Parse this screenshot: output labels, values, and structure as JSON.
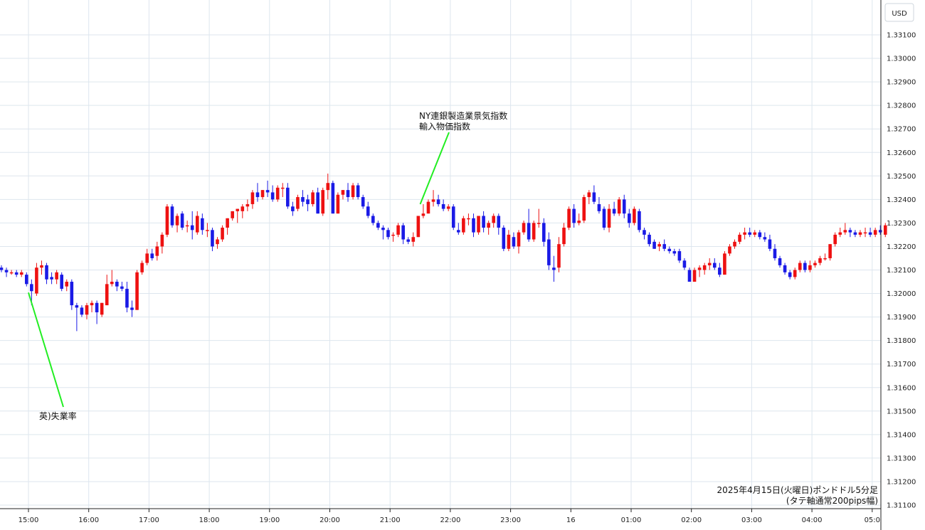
{
  "currency_label": "USD",
  "colors": {
    "up": "#ee1111",
    "down": "#1a1ae6",
    "grid": "#dde6ee",
    "pointer": "#22ee22"
  },
  "note": {
    "line1": "2025年4月15日(火曜日)ポンドドル5分足",
    "line2": "(タテ軸通常200pips幅)"
  },
  "annotations": [
    {
      "lines": [
        "英)失業率"
      ],
      "time": "15:00",
      "price": 1.3201
    },
    {
      "lines": [
        "NY連銀製造業景気指数",
        "輸入物価指数"
      ],
      "time": "21:30",
      "price": 1.3238
    }
  ],
  "chart_data": {
    "type": "candlestick",
    "title": "2025年4月15日(火曜日)ポンドドル5分足",
    "subtitle": "(タテ軸通常200pips幅)",
    "y_axis_label": "USD",
    "ylim": [
      1.3108,
      1.3318
    ],
    "y_ticks": [
      "1.31100",
      "1.31200",
      "1.31300",
      "1.31400",
      "1.31500",
      "1.31600",
      "1.31700",
      "1.31800",
      "1.31900",
      "1.32000",
      "1.32100",
      "1.32200",
      "1.32300",
      "1.32400",
      "1.32500",
      "1.32600",
      "1.32700",
      "1.32800",
      "1.32900",
      "1.33000",
      "1.33100"
    ],
    "x_ticks": [
      "15:00",
      "16:00",
      "17:00",
      "18:00",
      "19:00",
      "20:00",
      "21:00",
      "22:00",
      "23:00",
      "16",
      "01:00",
      "02:00",
      "03:00",
      "04:00",
      "05:0"
    ],
    "candle_interval": "5min",
    "candles": [
      [
        1.3211,
        1.3212,
        1.3209,
        1.321
      ],
      [
        1.321,
        1.3211,
        1.3207,
        1.3209
      ],
      [
        1.3209,
        1.321,
        1.3208,
        1.3209
      ],
      [
        1.3209,
        1.321,
        1.3207,
        1.3208
      ],
      [
        1.3208,
        1.321,
        1.3207,
        1.3209
      ],
      [
        1.3208,
        1.3209,
        1.3203,
        1.3204
      ],
      [
        1.3204,
        1.3206,
        1.3195,
        1.3201
      ],
      [
        1.32,
        1.3213,
        1.3199,
        1.3211
      ],
      [
        1.3211,
        1.3214,
        1.3208,
        1.3212
      ],
      [
        1.3212,
        1.3213,
        1.3204,
        1.3206
      ],
      [
        1.3207,
        1.3209,
        1.3204,
        1.3206
      ],
      [
        1.3206,
        1.321,
        1.3204,
        1.3209
      ],
      [
        1.3208,
        1.3209,
        1.3201,
        1.3202
      ],
      [
        1.3203,
        1.3206,
        1.3201,
        1.3205
      ],
      [
        1.3205,
        1.3206,
        1.3193,
        1.3195
      ],
      [
        1.3195,
        1.3196,
        1.3184,
        1.3194
      ],
      [
        1.3194,
        1.3195,
        1.319,
        1.3191
      ],
      [
        1.3191,
        1.3196,
        1.3189,
        1.3195
      ],
      [
        1.3195,
        1.3197,
        1.3192,
        1.3196
      ],
      [
        1.3196,
        1.3197,
        1.3187,
        1.3192
      ],
      [
        1.3191,
        1.3196,
        1.319,
        1.3196
      ],
      [
        1.3195,
        1.3208,
        1.3195,
        1.3204
      ],
      [
        1.3204,
        1.321,
        1.3203,
        1.3205
      ],
      [
        1.3205,
        1.3206,
        1.3201,
        1.3203
      ],
      [
        1.3203,
        1.3205,
        1.3201,
        1.3202
      ],
      [
        1.3202,
        1.3205,
        1.3192,
        1.3194
      ],
      [
        1.3194,
        1.3197,
        1.319,
        1.3193
      ],
      [
        1.3193,
        1.321,
        1.3193,
        1.3209
      ],
      [
        1.3209,
        1.3214,
        1.3208,
        1.3213
      ],
      [
        1.3213,
        1.3219,
        1.3212,
        1.3217
      ],
      [
        1.3217,
        1.3219,
        1.3214,
        1.3215
      ],
      [
        1.3216,
        1.3222,
        1.3214,
        1.322
      ],
      [
        1.322,
        1.3226,
        1.3217,
        1.3225
      ],
      [
        1.3225,
        1.3238,
        1.3224,
        1.3237
      ],
      [
        1.3237,
        1.3238,
        1.3228,
        1.3229
      ],
      [
        1.3229,
        1.3234,
        1.3226,
        1.3233
      ],
      [
        1.3234,
        1.3235,
        1.3227,
        1.3228
      ],
      [
        1.3229,
        1.3231,
        1.3226,
        1.3229
      ],
      [
        1.3229,
        1.3235,
        1.3223,
        1.3227
      ],
      [
        1.3226,
        1.3235,
        1.3225,
        1.3233
      ],
      [
        1.3232,
        1.3234,
        1.3225,
        1.3227
      ],
      [
        1.3227,
        1.323,
        1.3224,
        1.3227
      ],
      [
        1.3227,
        1.3228,
        1.3218,
        1.322
      ],
      [
        1.3221,
        1.3224,
        1.3219,
        1.3223
      ],
      [
        1.3223,
        1.3229,
        1.3222,
        1.3228
      ],
      [
        1.3228,
        1.3232,
        1.3225,
        1.3232
      ],
      [
        1.3232,
        1.3235,
        1.3231,
        1.3235
      ],
      [
        1.3235,
        1.3236,
        1.323,
        1.3236
      ],
      [
        1.3235,
        1.3238,
        1.3232,
        1.3237
      ],
      [
        1.3237,
        1.324,
        1.3235,
        1.3238
      ],
      [
        1.3238,
        1.3244,
        1.3236,
        1.3243
      ],
      [
        1.3243,
        1.3247,
        1.3239,
        1.3241
      ],
      [
        1.3241,
        1.3244,
        1.324,
        1.3244
      ],
      [
        1.3244,
        1.3248,
        1.3241,
        1.3243
      ],
      [
        1.3243,
        1.3246,
        1.3239,
        1.324
      ],
      [
        1.324,
        1.3246,
        1.3239,
        1.3245
      ],
      [
        1.3245,
        1.3247,
        1.3241,
        1.3245
      ],
      [
        1.3245,
        1.3247,
        1.3236,
        1.3237
      ],
      [
        1.3237,
        1.3239,
        1.3233,
        1.3235
      ],
      [
        1.3236,
        1.3242,
        1.3235,
        1.3241
      ],
      [
        1.3241,
        1.3244,
        1.3237,
        1.3239
      ],
      [
        1.324,
        1.3242,
        1.3235,
        1.3238
      ],
      [
        1.3238,
        1.3244,
        1.3237,
        1.3243
      ],
      [
        1.3243,
        1.3245,
        1.3234,
        1.3234
      ],
      [
        1.3234,
        1.3245,
        1.3233,
        1.3244
      ],
      [
        1.3244,
        1.3251,
        1.324,
        1.3247
      ],
      [
        1.3247,
        1.3248,
        1.3234,
        1.3234
      ],
      [
        1.3234,
        1.3243,
        1.3234,
        1.3242
      ],
      [
        1.3242,
        1.3244,
        1.324,
        1.3244
      ],
      [
        1.3244,
        1.3247,
        1.3239,
        1.3241
      ],
      [
        1.3241,
        1.3247,
        1.324,
        1.3246
      ],
      [
        1.3246,
        1.3247,
        1.324,
        1.3241
      ],
      [
        1.3241,
        1.3242,
        1.3236,
        1.3237
      ],
      [
        1.3237,
        1.3239,
        1.3232,
        1.3233
      ],
      [
        1.3233,
        1.3234,
        1.3229,
        1.323
      ],
      [
        1.323,
        1.3231,
        1.3227,
        1.3228
      ],
      [
        1.3228,
        1.3229,
        1.3223,
        1.3227
      ],
      [
        1.3227,
        1.3228,
        1.3223,
        1.3224
      ],
      [
        1.3225,
        1.3226,
        1.3222,
        1.3225
      ],
      [
        1.3225,
        1.323,
        1.3224,
        1.3229
      ],
      [
        1.3229,
        1.323,
        1.3221,
        1.3223
      ],
      [
        1.3223,
        1.3224,
        1.3221,
        1.3222
      ],
      [
        1.3222,
        1.3226,
        1.322,
        1.3224
      ],
      [
        1.3224,
        1.3233,
        1.3224,
        1.3233
      ],
      [
        1.3233,
        1.3238,
        1.3232,
        1.3234
      ],
      [
        1.3234,
        1.324,
        1.3234,
        1.3239
      ],
      [
        1.3239,
        1.3244,
        1.3237,
        1.324
      ],
      [
        1.324,
        1.3242,
        1.3237,
        1.3238
      ],
      [
        1.3238,
        1.324,
        1.3235,
        1.3236
      ],
      [
        1.3236,
        1.3238,
        1.3235,
        1.3237
      ],
      [
        1.3237,
        1.3238,
        1.3227,
        1.3228
      ],
      [
        1.3227,
        1.323,
        1.3225,
        1.3226
      ],
      [
        1.3226,
        1.3233,
        1.3225,
        1.3232
      ],
      [
        1.3232,
        1.3234,
        1.3229,
        1.3232
      ],
      [
        1.3232,
        1.3234,
        1.3224,
        1.3226
      ],
      [
        1.3226,
        1.3233,
        1.3225,
        1.3233
      ],
      [
        1.3233,
        1.3235,
        1.3226,
        1.3228
      ],
      [
        1.3228,
        1.3231,
        1.3225,
        1.323
      ],
      [
        1.323,
        1.3234,
        1.3228,
        1.3233
      ],
      [
        1.3233,
        1.3234,
        1.3225,
        1.3228
      ],
      [
        1.3228,
        1.3229,
        1.3218,
        1.3219
      ],
      [
        1.3219,
        1.3227,
        1.3218,
        1.3225
      ],
      [
        1.3224,
        1.3226,
        1.3219,
        1.322
      ],
      [
        1.322,
        1.3227,
        1.3217,
        1.3226
      ],
      [
        1.3226,
        1.3231,
        1.3225,
        1.323
      ],
      [
        1.323,
        1.3236,
        1.3222,
        1.3223
      ],
      [
        1.3223,
        1.3231,
        1.3222,
        1.323
      ],
      [
        1.323,
        1.3236,
        1.3228,
        1.323
      ],
      [
        1.323,
        1.3232,
        1.322,
        1.3222
      ],
      [
        1.3223,
        1.3226,
        1.321,
        1.3212
      ],
      [
        1.3211,
        1.3216,
        1.3205,
        1.321
      ],
      [
        1.3211,
        1.3224,
        1.3209,
        1.3221
      ],
      [
        1.3221,
        1.323,
        1.322,
        1.3228
      ],
      [
        1.3228,
        1.3237,
        1.3227,
        1.3236
      ],
      [
        1.3236,
        1.3238,
        1.3228,
        1.323
      ],
      [
        1.323,
        1.3234,
        1.3229,
        1.3231
      ],
      [
        1.3231,
        1.3242,
        1.323,
        1.3241
      ],
      [
        1.3241,
        1.3244,
        1.3238,
        1.3243
      ],
      [
        1.3243,
        1.3246,
        1.3238,
        1.3239
      ],
      [
        1.3238,
        1.3241,
        1.3234,
        1.3235
      ],
      [
        1.3236,
        1.3237,
        1.3227,
        1.3228
      ],
      [
        1.3228,
        1.3238,
        1.3226,
        1.3236
      ],
      [
        1.3236,
        1.3239,
        1.3233,
        1.3234
      ],
      [
        1.3234,
        1.3241,
        1.3233,
        1.324
      ],
      [
        1.324,
        1.3242,
        1.3232,
        1.3234
      ],
      [
        1.3234,
        1.3236,
        1.3228,
        1.323
      ],
      [
        1.323,
        1.3237,
        1.3229,
        1.3236
      ],
      [
        1.3235,
        1.3236,
        1.3226,
        1.3227
      ],
      [
        1.3227,
        1.3228,
        1.3223,
        1.3225
      ],
      [
        1.3225,
        1.3226,
        1.322,
        1.3221
      ],
      [
        1.3222,
        1.3223,
        1.3219,
        1.3219
      ],
      [
        1.322,
        1.3222,
        1.3218,
        1.3221
      ],
      [
        1.3221,
        1.3223,
        1.3218,
        1.3219
      ],
      [
        1.3219,
        1.322,
        1.3217,
        1.3218
      ],
      [
        1.3218,
        1.3219,
        1.3216,
        1.3217
      ],
      [
        1.3218,
        1.3219,
        1.3213,
        1.3214
      ],
      [
        1.3214,
        1.3215,
        1.321,
        1.3211
      ],
      [
        1.321,
        1.3211,
        1.3206,
        1.3205
      ],
      [
        1.3205,
        1.3211,
        1.3205,
        1.321
      ],
      [
        1.321,
        1.3212,
        1.3207,
        1.3211
      ],
      [
        1.321,
        1.3213,
        1.3208,
        1.3212
      ],
      [
        1.3212,
        1.3215,
        1.321,
        1.3213
      ],
      [
        1.3213,
        1.3215,
        1.321,
        1.3211
      ],
      [
        1.3211,
        1.3213,
        1.3207,
        1.3208
      ],
      [
        1.3208,
        1.3218,
        1.3208,
        1.3217
      ],
      [
        1.3217,
        1.3221,
        1.3216,
        1.322
      ],
      [
        1.322,
        1.3223,
        1.3219,
        1.3222
      ],
      [
        1.3222,
        1.3226,
        1.3221,
        1.3225
      ],
      [
        1.3225,
        1.3228,
        1.3223,
        1.3226
      ],
      [
        1.3226,
        1.3228,
        1.3224,
        1.3225
      ],
      [
        1.3225,
        1.3227,
        1.3224,
        1.3226
      ],
      [
        1.3226,
        1.3227,
        1.3223,
        1.3224
      ],
      [
        1.3224,
        1.3226,
        1.3222,
        1.3223
      ],
      [
        1.3223,
        1.3225,
        1.3218,
        1.3219
      ],
      [
        1.3219,
        1.3221,
        1.3214,
        1.3215
      ],
      [
        1.3215,
        1.3216,
        1.3211,
        1.3212
      ],
      [
        1.3212,
        1.3213,
        1.3208,
        1.3209
      ],
      [
        1.3209,
        1.321,
        1.3206,
        1.3207
      ],
      [
        1.3207,
        1.3211,
        1.3206,
        1.321
      ],
      [
        1.321,
        1.3214,
        1.3209,
        1.3213
      ],
      [
        1.3213,
        1.3214,
        1.3209,
        1.321
      ],
      [
        1.321,
        1.3214,
        1.3209,
        1.3212
      ],
      [
        1.3212,
        1.3214,
        1.3211,
        1.3213
      ],
      [
        1.3213,
        1.3216,
        1.3212,
        1.3215
      ],
      [
        1.3215,
        1.3217,
        1.3214,
        1.3215
      ],
      [
        1.3215,
        1.3221,
        1.3214,
        1.3221
      ],
      [
        1.3221,
        1.3226,
        1.322,
        1.3225
      ],
      [
        1.3225,
        1.3228,
        1.3224,
        1.3226
      ],
      [
        1.3226,
        1.323,
        1.3225,
        1.3227
      ],
      [
        1.3227,
        1.3228,
        1.3224,
        1.3226
      ],
      [
        1.3226,
        1.3227,
        1.3224,
        1.3225
      ],
      [
        1.3225,
        1.3227,
        1.3224,
        1.3226
      ],
      [
        1.3226,
        1.3228,
        1.3224,
        1.3226
      ],
      [
        1.3226,
        1.3228,
        1.3224,
        1.3225
      ],
      [
        1.3225,
        1.3228,
        1.3224,
        1.3227
      ],
      [
        1.3227,
        1.3229,
        1.3225,
        1.3226
      ],
      [
        1.3225,
        1.323,
        1.3224,
        1.3229
      ]
    ]
  }
}
